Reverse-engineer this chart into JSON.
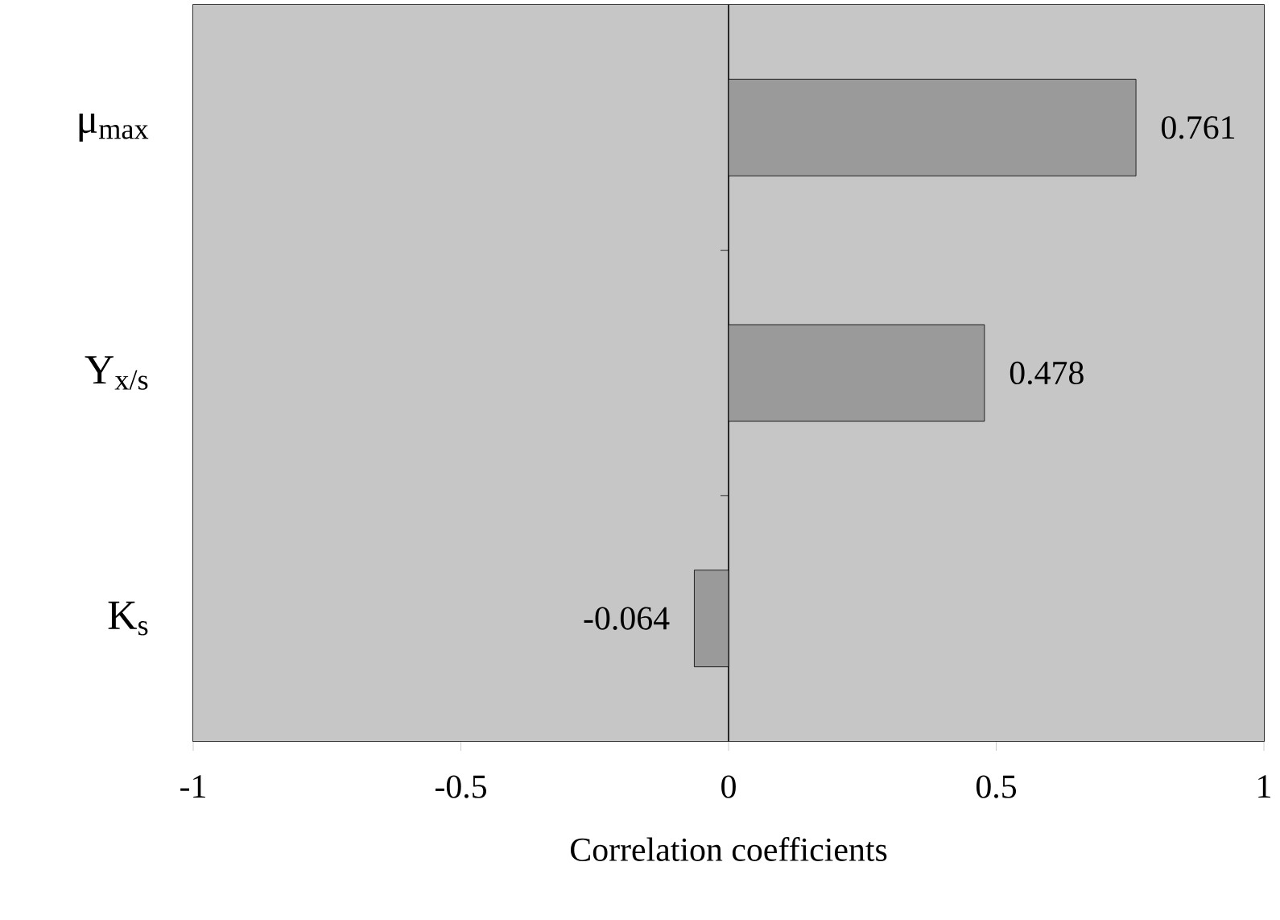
{
  "chart_data": {
    "type": "bar",
    "orientation": "horizontal",
    "xlabel": "Correlation coefficients",
    "categories": [
      "μ$_{max}$",
      "Y$_{x/s}$",
      "K$_{s}$"
    ],
    "values": [
      0.761,
      0.478,
      -0.064
    ],
    "color": "#9a9a9a",
    "xlim": [
      -1,
      1
    ],
    "xticks": [
      -1,
      -0.5,
      0,
      0.5,
      1
    ],
    "data_labels": true,
    "ref_lines": [
      {
        "axis": "x",
        "value": 0
      }
    ]
  }
}
